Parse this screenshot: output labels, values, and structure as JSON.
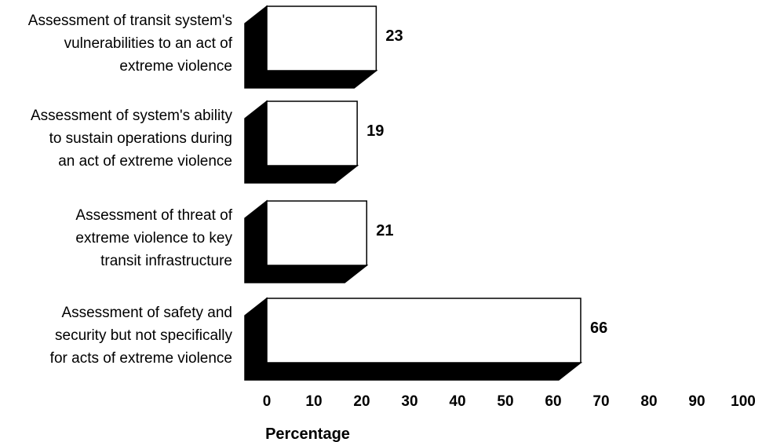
{
  "chart_data": {
    "type": "bar",
    "orientation": "horizontal",
    "style": "3d",
    "title": "",
    "xlabel": "Percentage",
    "ylabel": "",
    "xlim": [
      0,
      100
    ],
    "xticks": [
      "0",
      "10",
      "20",
      "30",
      "40",
      "50",
      "60",
      "70",
      "80",
      "90",
      "100"
    ],
    "grid": false,
    "categories": [
      [
        "Assessment of transit system's",
        "vulnerabilities to an act of",
        "extreme violence"
      ],
      [
        "Assessment of system's ability",
        "to sustain operations during",
        "an act of extreme violence"
      ],
      [
        "Assessment of threat of",
        "extreme violence to key",
        "transit infrastructure"
      ],
      [
        "Assessment of safety and",
        "security but not specifically",
        "for acts of extreme violence"
      ]
    ],
    "values": [
      23,
      19,
      21,
      66
    ],
    "colors": {
      "bar_face": "#ffffff",
      "bar_shadow": "#000000",
      "outline": "#000000"
    }
  }
}
